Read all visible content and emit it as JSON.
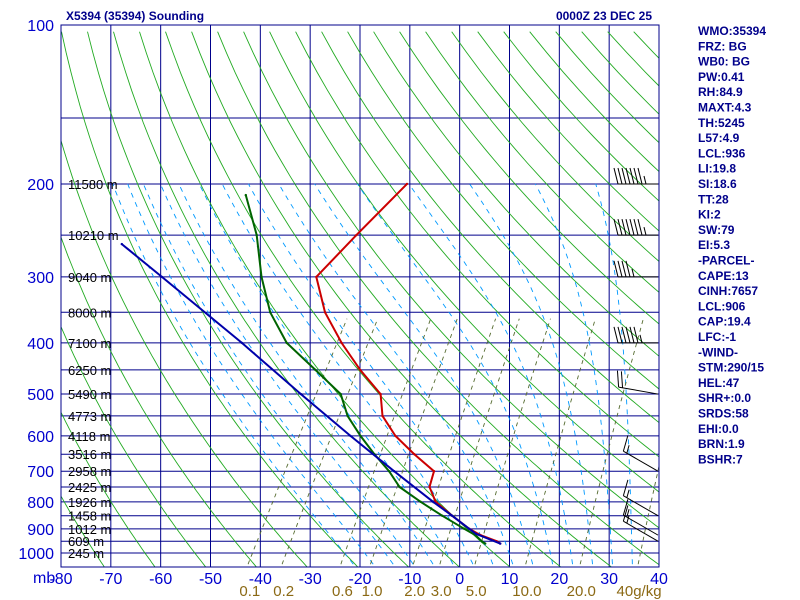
{
  "header": {
    "station_title": "X5394 (35394) Sounding",
    "time": "0000Z 23 DEC 25"
  },
  "chart_data": {
    "type": "skew-t",
    "pressure_levels": [
      100,
      200,
      300,
      400,
      500,
      600,
      700,
      800,
      900,
      1000
    ],
    "pressure_labels": [
      "100",
      "200",
      "300",
      "400",
      "500",
      "600",
      "700",
      "800",
      "900",
      "1000"
    ],
    "pressure_unit": "mb",
    "temperature_ticks": [
      "-80",
      "-70",
      "-60",
      "-50",
      "-40",
      "-30",
      "-20",
      "-10",
      "0",
      "10",
      "20",
      "30",
      "40"
    ],
    "temperature_range": [
      -80,
      40
    ],
    "mixing_ratio_labels": [
      "0.1",
      "0.2",
      "0.6",
      "1.0",
      "2.0",
      "3.0",
      "5.0",
      "10.0",
      "20.0",
      "40g/kg"
    ],
    "mixing_ratio_values": [
      0.1,
      0.2,
      0.6,
      1.0,
      2.0,
      3.0,
      5.0,
      10.0,
      20.0,
      40.0
    ],
    "height_labels": [
      {
        "p": 200,
        "text": "11580 m"
      },
      {
        "p": 250,
        "text": "10210 m"
      },
      {
        "p": 300,
        "text": "9040 m"
      },
      {
        "p": 350,
        "text": "8000 m"
      },
      {
        "p": 400,
        "text": "7100 m"
      },
      {
        "p": 450,
        "text": "6250 m"
      },
      {
        "p": 500,
        "text": "5490 m"
      },
      {
        "p": 550,
        "text": "4773 m"
      },
      {
        "p": 600,
        "text": "4118 m"
      },
      {
        "p": 650,
        "text": "3516 m"
      },
      {
        "p": 700,
        "text": "2958 m"
      },
      {
        "p": 750,
        "text": "2425 m"
      },
      {
        "p": 800,
        "text": "1926 m"
      },
      {
        "p": 850,
        "text": "1458 m"
      },
      {
        "p": 900,
        "text": "1012 m"
      },
      {
        "p": 950,
        "text": "609 m"
      },
      {
        "p": 1000,
        "text": "245 m"
      }
    ],
    "series": [
      {
        "name": "temperature",
        "color": "#cc0000",
        "points": [
          {
            "p": 960,
            "t": 7.0
          },
          {
            "p": 950,
            "t": 6.0
          },
          {
            "p": 925,
            "t": 2.0
          },
          {
            "p": 900,
            "t": -1.0
          },
          {
            "p": 850,
            "t": -6.0
          },
          {
            "p": 800,
            "t": -11.0
          },
          {
            "p": 750,
            "t": -14.0
          },
          {
            "p": 700,
            "t": -15.0
          },
          {
            "p": 650,
            "t": -21.0
          },
          {
            "p": 600,
            "t": -27.0
          },
          {
            "p": 550,
            "t": -32.0
          },
          {
            "p": 500,
            "t": -35.0
          },
          {
            "p": 450,
            "t": -42.0
          },
          {
            "p": 400,
            "t": -49.0
          },
          {
            "p": 350,
            "t": -56.0
          },
          {
            "p": 300,
            "t": -62.0
          },
          {
            "p": 250,
            "t": -59.0
          },
          {
            "p": 200,
            "t": -55.0
          }
        ]
      },
      {
        "name": "dewpoint",
        "color": "#006400",
        "points": [
          {
            "p": 960,
            "t": 4.0
          },
          {
            "p": 950,
            "t": 3.0
          },
          {
            "p": 925,
            "t": 1.0
          },
          {
            "p": 900,
            "t": -2.0
          },
          {
            "p": 850,
            "t": -8.0
          },
          {
            "p": 800,
            "t": -14.0
          },
          {
            "p": 750,
            "t": -20.0
          },
          {
            "p": 700,
            "t": -24.0
          },
          {
            "p": 650,
            "t": -29.0
          },
          {
            "p": 600,
            "t": -34.0
          },
          {
            "p": 550,
            "t": -39.0
          },
          {
            "p": 500,
            "t": -43.0
          },
          {
            "p": 450,
            "t": -51.0
          },
          {
            "p": 400,
            "t": -60.0
          },
          {
            "p": 350,
            "t": -67.0
          },
          {
            "p": 300,
            "t": -73.0
          },
          {
            "p": 250,
            "t": -79.0
          },
          {
            "p": 210,
            "t": -86.0
          }
        ]
      },
      {
        "name": "parcel",
        "color": "#0000aa",
        "points": [
          {
            "p": 960,
            "t": 7.0
          },
          {
            "p": 920,
            "t": 1.0
          },
          {
            "p": 900,
            "t": -1.0
          },
          {
            "p": 850,
            "t": -6.0
          },
          {
            "p": 800,
            "t": -11.5
          },
          {
            "p": 700,
            "t": -23.0
          },
          {
            "p": 600,
            "t": -36.0
          },
          {
            "p": 500,
            "t": -51.0
          },
          {
            "p": 400,
            "t": -69.0
          },
          {
            "p": 300,
            "t": -93.0
          },
          {
            "p": 260,
            "t": -105.0
          }
        ]
      }
    ],
    "wind_barbs": [
      {
        "p": 200,
        "dir": 270,
        "speed_kt": 75
      },
      {
        "p": 250,
        "dir": 270,
        "speed_kt": 75
      },
      {
        "p": 300,
        "dir": 270,
        "speed_kt": 45
      },
      {
        "p": 400,
        "dir": 270,
        "speed_kt": 65
      },
      {
        "p": 500,
        "dir": 280,
        "speed_kt": 20
      },
      {
        "p": 700,
        "dir": 300,
        "speed_kt": 15
      },
      {
        "p": 850,
        "dir": 300,
        "speed_kt": 15
      },
      {
        "p": 925,
        "dir": 300,
        "speed_kt": 15
      },
      {
        "p": 950,
        "dir": 300,
        "speed_kt": 15
      }
    ]
  },
  "indices": [
    "WMO:35394",
    "FRZ: BG",
    "WB0: BG",
    "PW:0.41",
    "RH:84.9",
    "MAXT:4.3",
    "TH:5245",
    "L57:4.9",
    "LCL:936",
    "LI:19.8",
    "SI:18.6",
    "TT:28",
    "KI:2",
    "SW:79",
    "EI:5.3",
    "-PARCEL-",
    "CAPE:13",
    "CINH:7657",
    "LCL:906",
    "CAP:19.4",
    "LFC:-1",
    "-WIND-",
    "STM:290/15",
    "HEL:47",
    "SHR+:0.0",
    "SRDS:58",
    "EHI:0.0",
    "BRN:1.9",
    "BSHR:7"
  ],
  "colors": {
    "grid": "#00008b",
    "isotherm": "#00008b",
    "dry_adiabat": "#22aa22",
    "moist_adiabat": "#0099ff",
    "mixing_ratio": "#556b2f",
    "barb": "#000000"
  }
}
